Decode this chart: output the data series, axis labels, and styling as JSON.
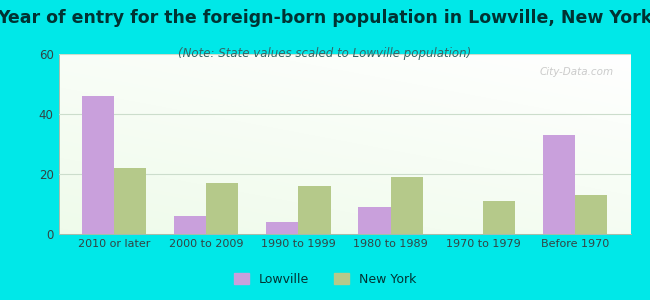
{
  "title": "Year of entry for the foreign-born population in Lowville, New York",
  "subtitle": "(Note: State values scaled to Lowville population)",
  "categories": [
    "2010 or later",
    "2000 to 2009",
    "1990 to 1999",
    "1980 to 1989",
    "1970 to 1979",
    "Before 1970"
  ],
  "lowville": [
    46,
    6,
    4,
    9,
    0,
    33
  ],
  "newyork": [
    22,
    17,
    16,
    19,
    11,
    13
  ],
  "lowville_color": "#c9a0dc",
  "newyork_color": "#b5c98a",
  "bar_width": 0.35,
  "ylim": [
    0,
    60
  ],
  "yticks": [
    0,
    20,
    40,
    60
  ],
  "background_outer": "#00e8e8",
  "title_color": "#003333",
  "subtitle_color": "#336666",
  "title_fontsize": 12.5,
  "subtitle_fontsize": 8.5,
  "watermark": "City-Data.com",
  "legend_labels": [
    "Lowville",
    "New York"
  ]
}
